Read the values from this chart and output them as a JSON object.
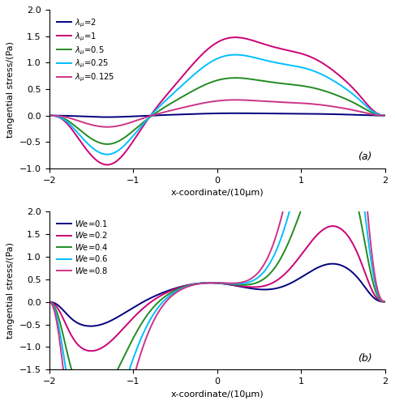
{
  "panel_a": {
    "ylabel": "tangential stress/(Pa)",
    "xlabel": "x-coordinate/(10μm)",
    "ylim": [
      -1,
      2
    ],
    "yticks": [
      -1,
      -0.5,
      0,
      0.5,
      1,
      1.5,
      2
    ],
    "xlim": [
      -2,
      2
    ],
    "xticks": [
      -2,
      -1,
      0,
      1,
      2
    ],
    "series": [
      {
        "label": "$\\lambda_{\\mu}$=2",
        "color": "#00007F",
        "amp": 0.04,
        "trough_amp": -0.03
      },
      {
        "label": "$\\lambda_{\\mu}$=1",
        "color": "#CC0077",
        "amp": 1.35,
        "trough_amp": -0.95
      },
      {
        "label": "$\\lambda_{\\mu}$=0.5",
        "color": "#228B22",
        "amp": 0.65,
        "trough_amp": -0.55
      },
      {
        "label": "$\\lambda_{\\mu}$=0.25",
        "color": "#00BFFF",
        "amp": 1.05,
        "trough_amp": -0.75
      },
      {
        "label": "$\\lambda_{\\mu}$=0.125",
        "color": "#CC3388",
        "amp": 0.27,
        "trough_amp": -0.22
      }
    ]
  },
  "panel_b": {
    "ylabel": "tangential stress/(Pa)",
    "xlabel": "x-coordinate/(10μm)",
    "ylim": [
      -1.5,
      2
    ],
    "yticks": [
      -1.5,
      -1,
      -0.5,
      0,
      0.5,
      1,
      1.5,
      2
    ],
    "xlim": [
      -2,
      2
    ],
    "xticks": [
      -2,
      -1,
      0,
      1,
      2
    ],
    "series": [
      {
        "label": "$\\mathit{W}$e=0.1",
        "color": "#00007F",
        "we": 0.1
      },
      {
        "label": "$\\mathit{W}$e=0.2",
        "color": "#CC0077",
        "we": 0.2
      },
      {
        "label": "$\\mathit{W}$e=0.4",
        "color": "#228B22",
        "we": 0.4
      },
      {
        "label": "$\\mathit{W}$e=0.6",
        "color": "#00BFFF",
        "we": 0.6
      },
      {
        "label": "$\\mathit{W}$e=0.8",
        "color": "#CC3388",
        "we": 0.8
      }
    ]
  }
}
